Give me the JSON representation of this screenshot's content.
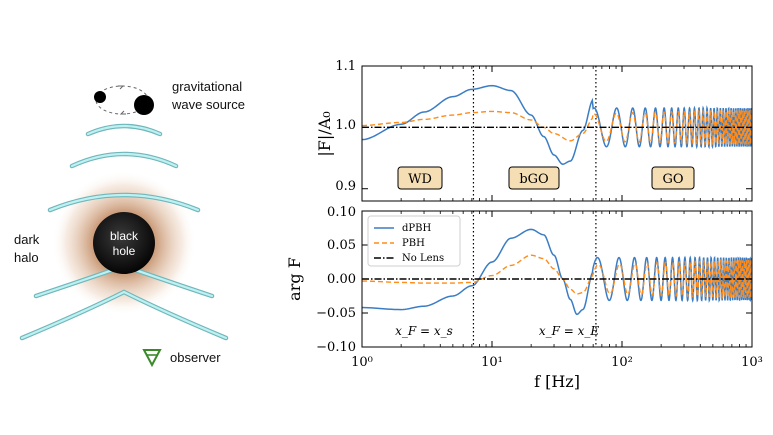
{
  "schematic": {
    "source_label_line1": "gravitational",
    "source_label_line2": "wave source",
    "halo_label_line1": "dark",
    "halo_label_line2": "halo",
    "lens_label_line1": "black",
    "lens_label_line2": "hole",
    "observer_label": "observer",
    "wave_color": "#9fe3e6",
    "halo_color": "#b06a3a",
    "observer_color": "#3a8a2a"
  },
  "colors": {
    "dpbh": "#3b7dc4",
    "pbh": "#ff8c1a",
    "nolens": "#000000",
    "region_box_fill": "#f5deb3"
  },
  "chart_data": [
    {
      "type": "line",
      "panel": "top",
      "ylabel": "|F|/A₀",
      "xscale": "log",
      "xlim": [
        1,
        1000
      ],
      "ylim": [
        0.88,
        1.1
      ],
      "yticks": [
        "0.9",
        "1.0",
        "1.1"
      ],
      "region_labels": [
        "WD",
        "bGO",
        "GO"
      ],
      "vlines_x": [
        7.2,
        63
      ],
      "series": [
        {
          "name": "dPBH",
          "x": [
            1,
            2,
            3,
            5,
            7,
            10,
            14,
            20,
            25,
            30,
            35,
            40,
            50,
            60,
            63,
            70,
            80,
            100,
            150,
            300,
            1000
          ],
          "y": [
            0.98,
            1.005,
            1.025,
            1.05,
            1.062,
            1.068,
            1.06,
            1.02,
            0.985,
            0.955,
            0.94,
            0.945,
            0.995,
            1.045,
            1.052,
            1.04,
            0.99,
            0.98,
            1.02,
            0.96,
            1.04
          ]
        },
        {
          "name": "PBH",
          "x": [
            1,
            2,
            3,
            5,
            7,
            10,
            14,
            20,
            25,
            30,
            40,
            50,
            60,
            63,
            70,
            80,
            100,
            150,
            300,
            1000
          ],
          "y": [
            1.003,
            1.008,
            1.013,
            1.02,
            1.024,
            1.026,
            1.024,
            1.012,
            1.0,
            0.99,
            0.978,
            0.99,
            1.015,
            1.02,
            1.015,
            0.99,
            0.985,
            1.015,
            0.965,
            1.035
          ]
        },
        {
          "name": "No Lens",
          "x": [
            1,
            1000
          ],
          "y": [
            1.0,
            1.0
          ]
        }
      ]
    },
    {
      "type": "line",
      "panel": "bottom",
      "xlabel": "f [Hz]",
      "ylabel": "arg F",
      "xscale": "log",
      "xlim": [
        1,
        1000
      ],
      "ylim": [
        -0.1,
        0.1
      ],
      "yticks": [
        "−0.10",
        "−0.05",
        "0.00",
        "0.05",
        "0.10"
      ],
      "xticks": [
        "10⁰",
        "10¹",
        "10²",
        "10³"
      ],
      "annotations": [
        "x_F = x_s",
        "x_F = x_E"
      ],
      "vlines_x": [
        7.2,
        63
      ],
      "legend": [
        "dPBH",
        "PBH",
        "No Lens"
      ],
      "legend_position": "upper-left",
      "series": [
        {
          "name": "dPBH",
          "x": [
            1,
            2,
            3,
            5,
            7,
            10,
            14,
            20,
            25,
            30,
            35,
            40,
            45,
            50,
            60,
            70,
            80,
            100,
            150,
            300,
            1000
          ],
          "y": [
            -0.042,
            -0.045,
            -0.04,
            -0.025,
            -0.01,
            0.025,
            0.06,
            0.073,
            0.065,
            0.035,
            0.0,
            -0.03,
            -0.052,
            -0.045,
            0.01,
            0.05,
            0.035,
            -0.04,
            0.04,
            -0.035,
            0.035
          ]
        },
        {
          "name": "PBH",
          "x": [
            1,
            2,
            3,
            5,
            7,
            10,
            14,
            20,
            25,
            30,
            35,
            40,
            45,
            50,
            60,
            70,
            80,
            100,
            150,
            300,
            1000
          ],
          "y": [
            -0.003,
            -0.005,
            -0.006,
            -0.006,
            -0.005,
            0.005,
            0.02,
            0.035,
            0.03,
            0.015,
            0.0,
            -0.015,
            -0.022,
            -0.02,
            0.005,
            0.03,
            0.025,
            -0.03,
            0.035,
            -0.035,
            0.035
          ]
        },
        {
          "name": "No Lens",
          "x": [
            1,
            1000
          ],
          "y": [
            0.0,
            0.0
          ]
        }
      ]
    }
  ]
}
